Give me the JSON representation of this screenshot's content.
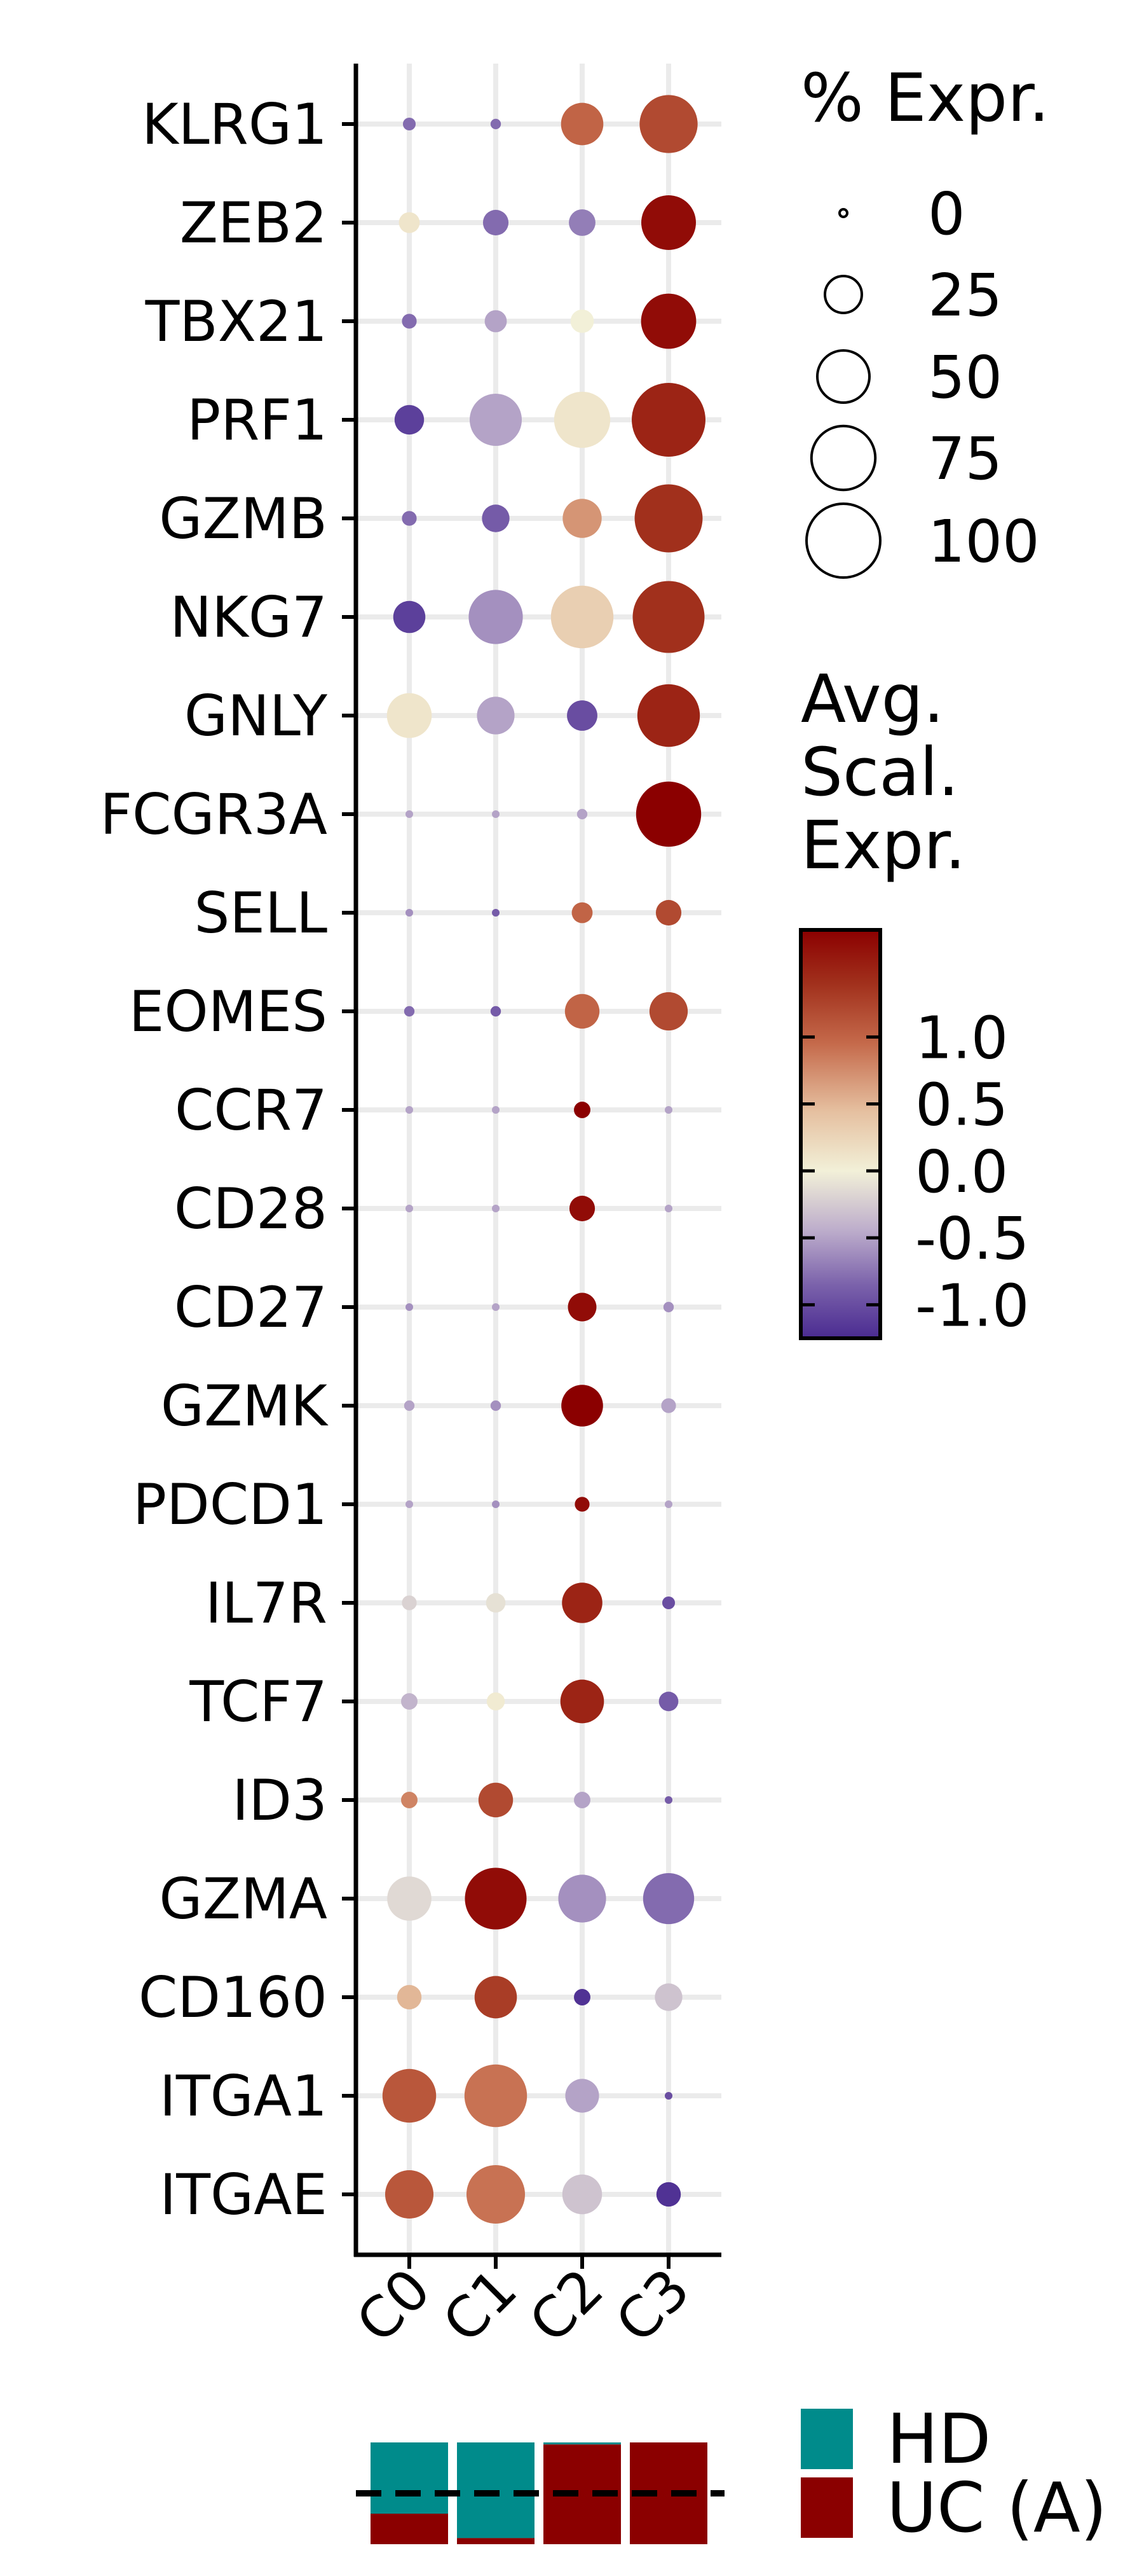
{
  "chart_data": {
    "type": "dotplot",
    "genes": [
      "KLRG1",
      "ZEB2",
      "TBX21",
      "PRF1",
      "GZMB",
      "NKG7",
      "GNLY",
      "FCGR3A",
      "SELL",
      "EOMES",
      "CCR7",
      "CD28",
      "CD27",
      "GZMK",
      "PDCD1",
      "IL7R",
      "TCF7",
      "ID3",
      "GZMA",
      "CD160",
      "ITGA1",
      "ITGAE"
    ],
    "clusters": [
      "C0",
      "C1",
      "C2",
      "C3"
    ],
    "pct_expr": [
      [
        3,
        2,
        33,
        62
      ],
      [
        8,
        12,
        13,
        55
      ],
      [
        4,
        9,
        10,
        56
      ],
      [
        16,
        50,
        58,
        100
      ],
      [
        4,
        14,
        28,
        85
      ],
      [
        19,
        54,
        72,
        95
      ],
      [
        37,
        26,
        17,
        72
      ],
      [
        1,
        1,
        2,
        78
      ],
      [
        1,
        1,
        8,
        12
      ],
      [
        2,
        2,
        22,
        27
      ],
      [
        1,
        1,
        5,
        1
      ],
      [
        1,
        1,
        12,
        1
      ],
      [
        1,
        1,
        15,
        2
      ],
      [
        2,
        2,
        32,
        4
      ],
      [
        1,
        1,
        4,
        1
      ],
      [
        4,
        7,
        30,
        3
      ],
      [
        5,
        6,
        35,
        7
      ],
      [
        5,
        22,
        5,
        1
      ],
      [
        36,
        70,
        42,
        48
      ],
      [
        11,
        33,
        5,
        14
      ],
      [
        53,
        72,
        21,
        1
      ],
      [
        43,
        63,
        29,
        11
      ]
    ],
    "avg_scaled_expr": [
      [
        -0.8,
        -0.8,
        1.0,
        1.2
      ],
      [
        0.1,
        -0.8,
        -0.7,
        1.7
      ],
      [
        -0.8,
        -0.5,
        0.0,
        1.7
      ],
      [
        -1.1,
        -0.5,
        0.1,
        1.5
      ],
      [
        -0.8,
        -0.9,
        0.7,
        1.4
      ],
      [
        -1.1,
        -0.6,
        0.3,
        1.4
      ],
      [
        0.1,
        -0.5,
        -1.0,
        1.5
      ],
      [
        -0.5,
        -0.5,
        -0.5,
        1.8
      ],
      [
        -0.6,
        -0.9,
        1.0,
        1.2
      ],
      [
        -0.8,
        -0.9,
        1.0,
        1.2
      ],
      [
        -0.5,
        -0.5,
        1.8,
        -0.5
      ],
      [
        -0.5,
        -0.5,
        1.7,
        -0.5
      ],
      [
        -0.6,
        -0.5,
        1.7,
        -0.6
      ],
      [
        -0.5,
        -0.6,
        1.8,
        -0.5
      ],
      [
        -0.5,
        -0.6,
        1.7,
        -0.5
      ],
      [
        -0.2,
        -0.1,
        1.5,
        -1.0
      ],
      [
        -0.4,
        0.05,
        1.5,
        -0.9
      ],
      [
        0.8,
        1.2,
        -0.5,
        -0.9
      ],
      [
        -0.15,
        1.7,
        -0.6,
        -0.8
      ],
      [
        0.5,
        1.3,
        -1.2,
        -0.3
      ],
      [
        1.1,
        0.9,
        -0.5,
        -1.0
      ],
      [
        1.1,
        0.9,
        -0.3,
        -1.2
      ]
    ],
    "size_legend": {
      "title": "% Expr.",
      "values": [
        0,
        25,
        50,
        75,
        100
      ],
      "labels": [
        "0",
        "25",
        "50",
        "75",
        "100"
      ]
    },
    "color_legend": {
      "title_lines": [
        "Avg.",
        "Scal.",
        "Expr."
      ],
      "ticks": [
        1.0,
        0.5,
        0.0,
        -0.5,
        -1.0
      ],
      "tick_labels": [
        "1.0",
        "0.5",
        "0.0",
        "-0.5",
        "-1.0"
      ],
      "range": [
        -1.25,
        1.8
      ]
    },
    "colorscale": [
      {
        "v": -1.25,
        "c": "#4a2b91"
      },
      {
        "v": -0.85,
        "c": "#7b62ab"
      },
      {
        "v": -0.45,
        "c": "#bcaccb"
      },
      {
        "v": 0.0,
        "c": "#f2f0d8"
      },
      {
        "v": 0.45,
        "c": "#e5bf9f"
      },
      {
        "v": 0.95,
        "c": "#c56a4b"
      },
      {
        "v": 1.4,
        "c": "#a1301c"
      },
      {
        "v": 1.8,
        "c": "#8b0000"
      }
    ],
    "group_composition": {
      "groups": [
        {
          "name": "HD",
          "color": "#008b8b",
          "fractions": [
            0.7,
            0.94,
            0.02,
            0.0
          ]
        },
        {
          "name": "UC (A)",
          "color": "#8b0000",
          "fractions": [
            0.3,
            0.06,
            0.98,
            1.0
          ]
        }
      ]
    },
    "grid": true
  }
}
